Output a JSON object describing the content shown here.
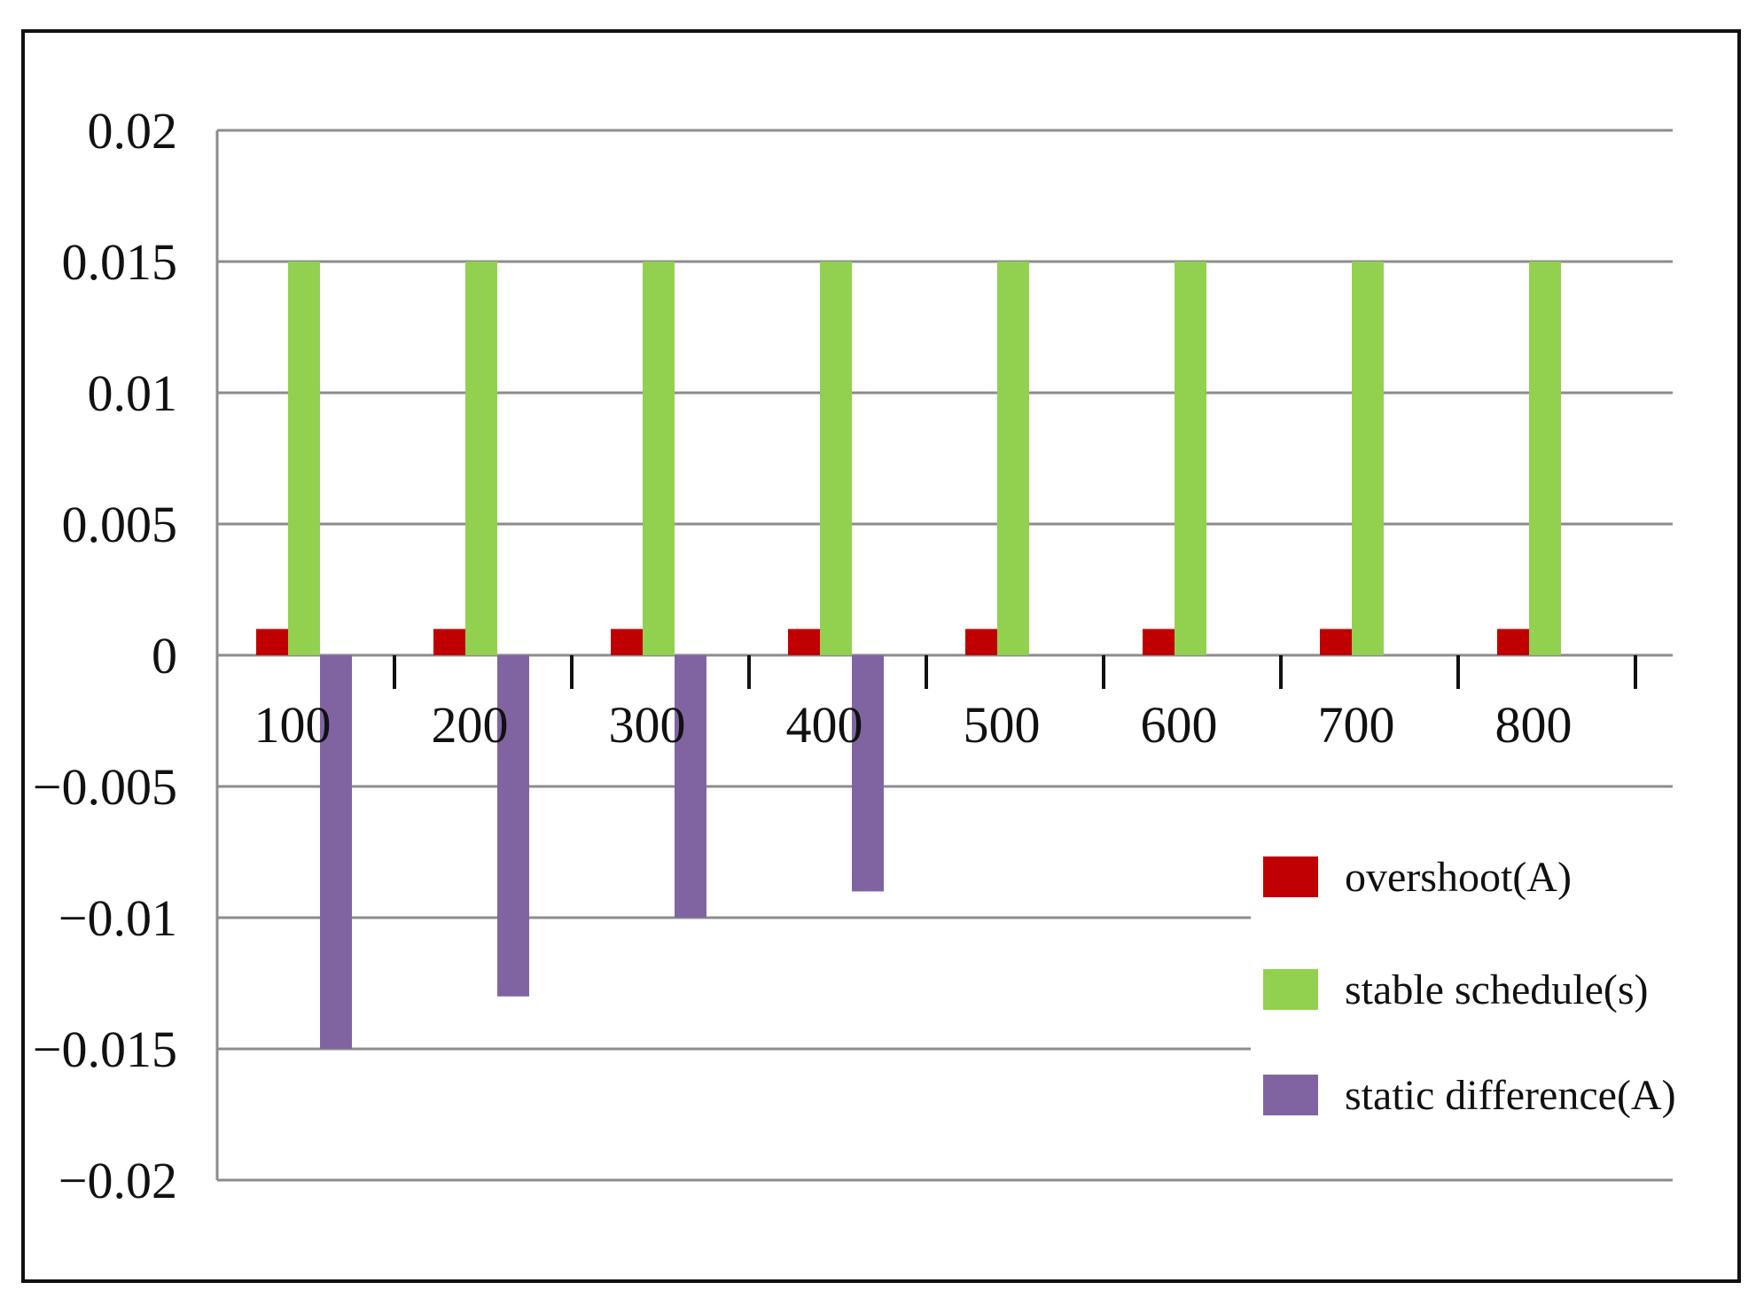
{
  "chart_data": {
    "type": "bar",
    "title": "",
    "xlabel": "",
    "ylabel": "",
    "categories": [
      "100",
      "200",
      "300",
      "400",
      "500",
      "600",
      "700",
      "800"
    ],
    "series": [
      {
        "name": "overshoot(A)",
        "color": "#c00000",
        "values": [
          0.001,
          0.001,
          0.001,
          0.001,
          0.001,
          0.001,
          0.001,
          0.001
        ]
      },
      {
        "name": "stable schedule(s)",
        "color": "#92d050",
        "values": [
          0.015,
          0.015,
          0.015,
          0.015,
          0.015,
          0.015,
          0.015,
          0.015
        ]
      },
      {
        "name": "static difference(A)",
        "color": "#8064a2",
        "values": [
          -0.015,
          -0.013,
          -0.01,
          -0.009,
          0,
          0,
          0,
          0
        ]
      }
    ],
    "ylim": [
      -0.02,
      0.02
    ],
    "yticks": [
      "0.02",
      "0.015",
      "0.01",
      "0.005",
      "0",
      "−0.005",
      "−0.01",
      "−0.015",
      "−0.02"
    ],
    "ytick_values": [
      0.02,
      0.015,
      0.01,
      0.005,
      0,
      -0.005,
      -0.01,
      -0.015,
      -0.02
    ],
    "grid": true,
    "legend_position": "bottom-right"
  }
}
